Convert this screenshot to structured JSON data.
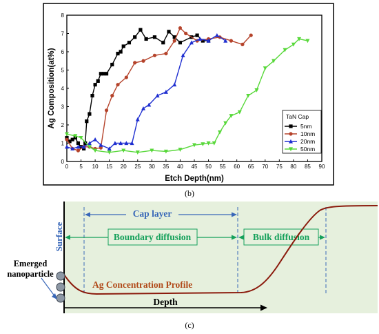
{
  "chart_data": {
    "type": "line",
    "title": "",
    "xlabel": "Etch Depth(nm)",
    "ylabel": "Ag Composition(at%)",
    "xlim": [
      0,
      90
    ],
    "ylim": [
      0,
      8
    ],
    "xticks": [
      0,
      5,
      10,
      15,
      20,
      25,
      30,
      35,
      40,
      45,
      50,
      55,
      60,
      65,
      70,
      75,
      80,
      85,
      90
    ],
    "yticks": [
      0,
      1,
      2,
      3,
      4,
      5,
      6,
      7,
      8
    ],
    "legend_title": "TaN Cap",
    "legend_position": "bottom-right",
    "series": [
      {
        "name": "5nm",
        "color": "#000000",
        "marker": "square",
        "x": [
          0,
          1,
          2,
          3,
          4,
          5,
          6,
          6.5,
          7,
          8,
          9,
          10,
          11,
          12,
          13,
          14,
          16,
          18,
          19,
          20,
          22,
          24,
          26,
          28,
          31,
          34,
          36,
          38,
          40,
          44,
          46,
          48,
          50
        ],
        "y": [
          1.3,
          1.1,
          1.2,
          1.3,
          1.0,
          0.8,
          0.7,
          1.0,
          2.2,
          2.6,
          3.6,
          4.2,
          4.4,
          4.8,
          4.8,
          4.8,
          5.3,
          5.9,
          6.0,
          6.3,
          6.5,
          6.8,
          7.2,
          6.7,
          6.8,
          6.5,
          7.1,
          6.8,
          6.5,
          6.8,
          6.9,
          6.6,
          6.6
        ]
      },
      {
        "name": "10nm",
        "color": "#b5432b",
        "marker": "circle",
        "x": [
          0,
          2,
          4,
          6,
          8,
          10,
          12,
          14,
          16,
          18,
          21,
          24,
          27,
          31,
          35,
          38,
          40,
          42,
          46,
          50,
          54,
          58,
          62,
          65
        ],
        "y": [
          1.2,
          0.7,
          0.6,
          0.8,
          0.8,
          0.7,
          0.75,
          2.8,
          3.6,
          4.2,
          4.6,
          5.4,
          5.5,
          5.8,
          5.9,
          6.6,
          7.3,
          7.0,
          6.6,
          6.7,
          6.8,
          6.6,
          6.4,
          6.9
        ]
      },
      {
        "name": "20nm",
        "color": "#1f2fd0",
        "marker": "triangle",
        "x": [
          0,
          2,
          4,
          6,
          8,
          10,
          12,
          15,
          17,
          19,
          21,
          23,
          25,
          27,
          29,
          32,
          35,
          38,
          41,
          44,
          47,
          50,
          53,
          56
        ],
        "y": [
          0.8,
          0.7,
          0.8,
          0.8,
          1.0,
          1.2,
          0.9,
          0.7,
          1.0,
          1.0,
          1.0,
          1.0,
          2.3,
          2.9,
          3.1,
          3.6,
          3.8,
          4.2,
          5.8,
          6.5,
          6.7,
          6.6,
          6.9,
          6.6
        ]
      },
      {
        "name": "50nm",
        "color": "#58d83a",
        "marker": "triangle-down",
        "x": [
          0,
          3,
          5,
          8,
          10,
          15,
          20,
          25,
          30,
          35,
          40,
          45,
          48,
          50,
          52,
          54,
          56,
          58,
          61,
          64,
          67,
          70,
          73,
          77,
          80,
          82,
          85
        ],
        "y": [
          1.5,
          1.4,
          1.3,
          0.8,
          0.6,
          0.5,
          0.6,
          0.5,
          0.6,
          0.55,
          0.65,
          0.9,
          0.95,
          1.0,
          1.0,
          1.6,
          2.1,
          2.5,
          2.7,
          3.6,
          3.9,
          5.1,
          5.5,
          6.1,
          6.4,
          6.7,
          6.6
        ]
      }
    ]
  },
  "captions": {
    "top": "(b)",
    "bottom": "(c)"
  },
  "diagram": {
    "surface_label": "Surface",
    "cap_layer": "Cap layer",
    "boundary_diffusion": "Boundary diffusion",
    "bulk_diffusion": "Bulk diffusion",
    "emerged_line1": "Emerged",
    "emerged_line2": "nanoparticle",
    "profile_label": "Ag Concentration Profile",
    "depth_label": "Depth",
    "colors": {
      "panel": "#e6f0dd",
      "blue": "#3867b8",
      "green": "#14a05a",
      "curve": "#8b1a0c",
      "profile_text": "#b14a1a"
    }
  }
}
